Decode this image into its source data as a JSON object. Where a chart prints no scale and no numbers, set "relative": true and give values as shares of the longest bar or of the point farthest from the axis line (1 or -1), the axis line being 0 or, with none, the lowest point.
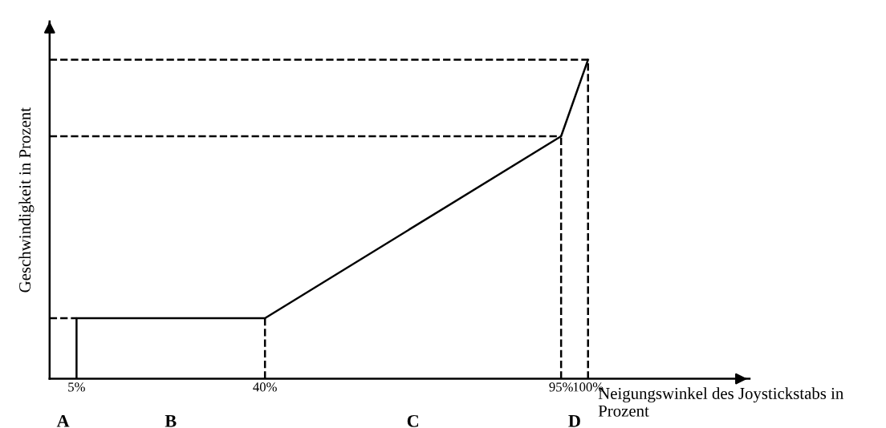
{
  "chart_data": {
    "type": "line",
    "relative": true,
    "xlabel": "Neigungswinkel des Joystickstabs in\nProzent",
    "ylabel": "Geschwindigkeit in Prozent",
    "xlim": [
      0,
      130
    ],
    "xticks": [
      {
        "value": 5,
        "label": "5%"
      },
      {
        "value": 40,
        "label": "40%"
      },
      {
        "value": 95,
        "label": "95%"
      },
      {
        "value": 100,
        "label": "100%"
      }
    ],
    "series": [
      {
        "color": "#000000",
        "x": [
          5,
          5,
          40,
          95,
          100
        ],
        "values": [
          0,
          0.19,
          0.19,
          0.76,
          1
        ]
      },
      {
        "color": "#000000",
        "line_style": "dashed",
        "x": [
          0,
          5
        ],
        "values": [
          0.19,
          0.19
        ]
      },
      {
        "color": "#000000",
        "line_style": "dashed",
        "x": [
          0,
          95
        ],
        "values": [
          0.76,
          0.76
        ]
      },
      {
        "color": "#000000",
        "line_style": "dashed",
        "x": [
          0,
          100
        ],
        "values": [
          1,
          1
        ]
      },
      {
        "color": "#000000",
        "line_style": "dashed",
        "x": [
          40,
          40
        ],
        "values": [
          0,
          0.19
        ]
      },
      {
        "color": "#000000",
        "line_style": "dashed",
        "x": [
          95,
          95
        ],
        "values": [
          0,
          0.76
        ]
      },
      {
        "color": "#000000",
        "line_style": "dashed",
        "x": [
          100,
          100
        ],
        "values": [
          0,
          1
        ]
      }
    ],
    "annotations": [
      "A",
      "B",
      "C",
      "D"
    ],
    "grid": false,
    "legend": false,
    "marker": "none",
    "line_style": "solid"
  }
}
